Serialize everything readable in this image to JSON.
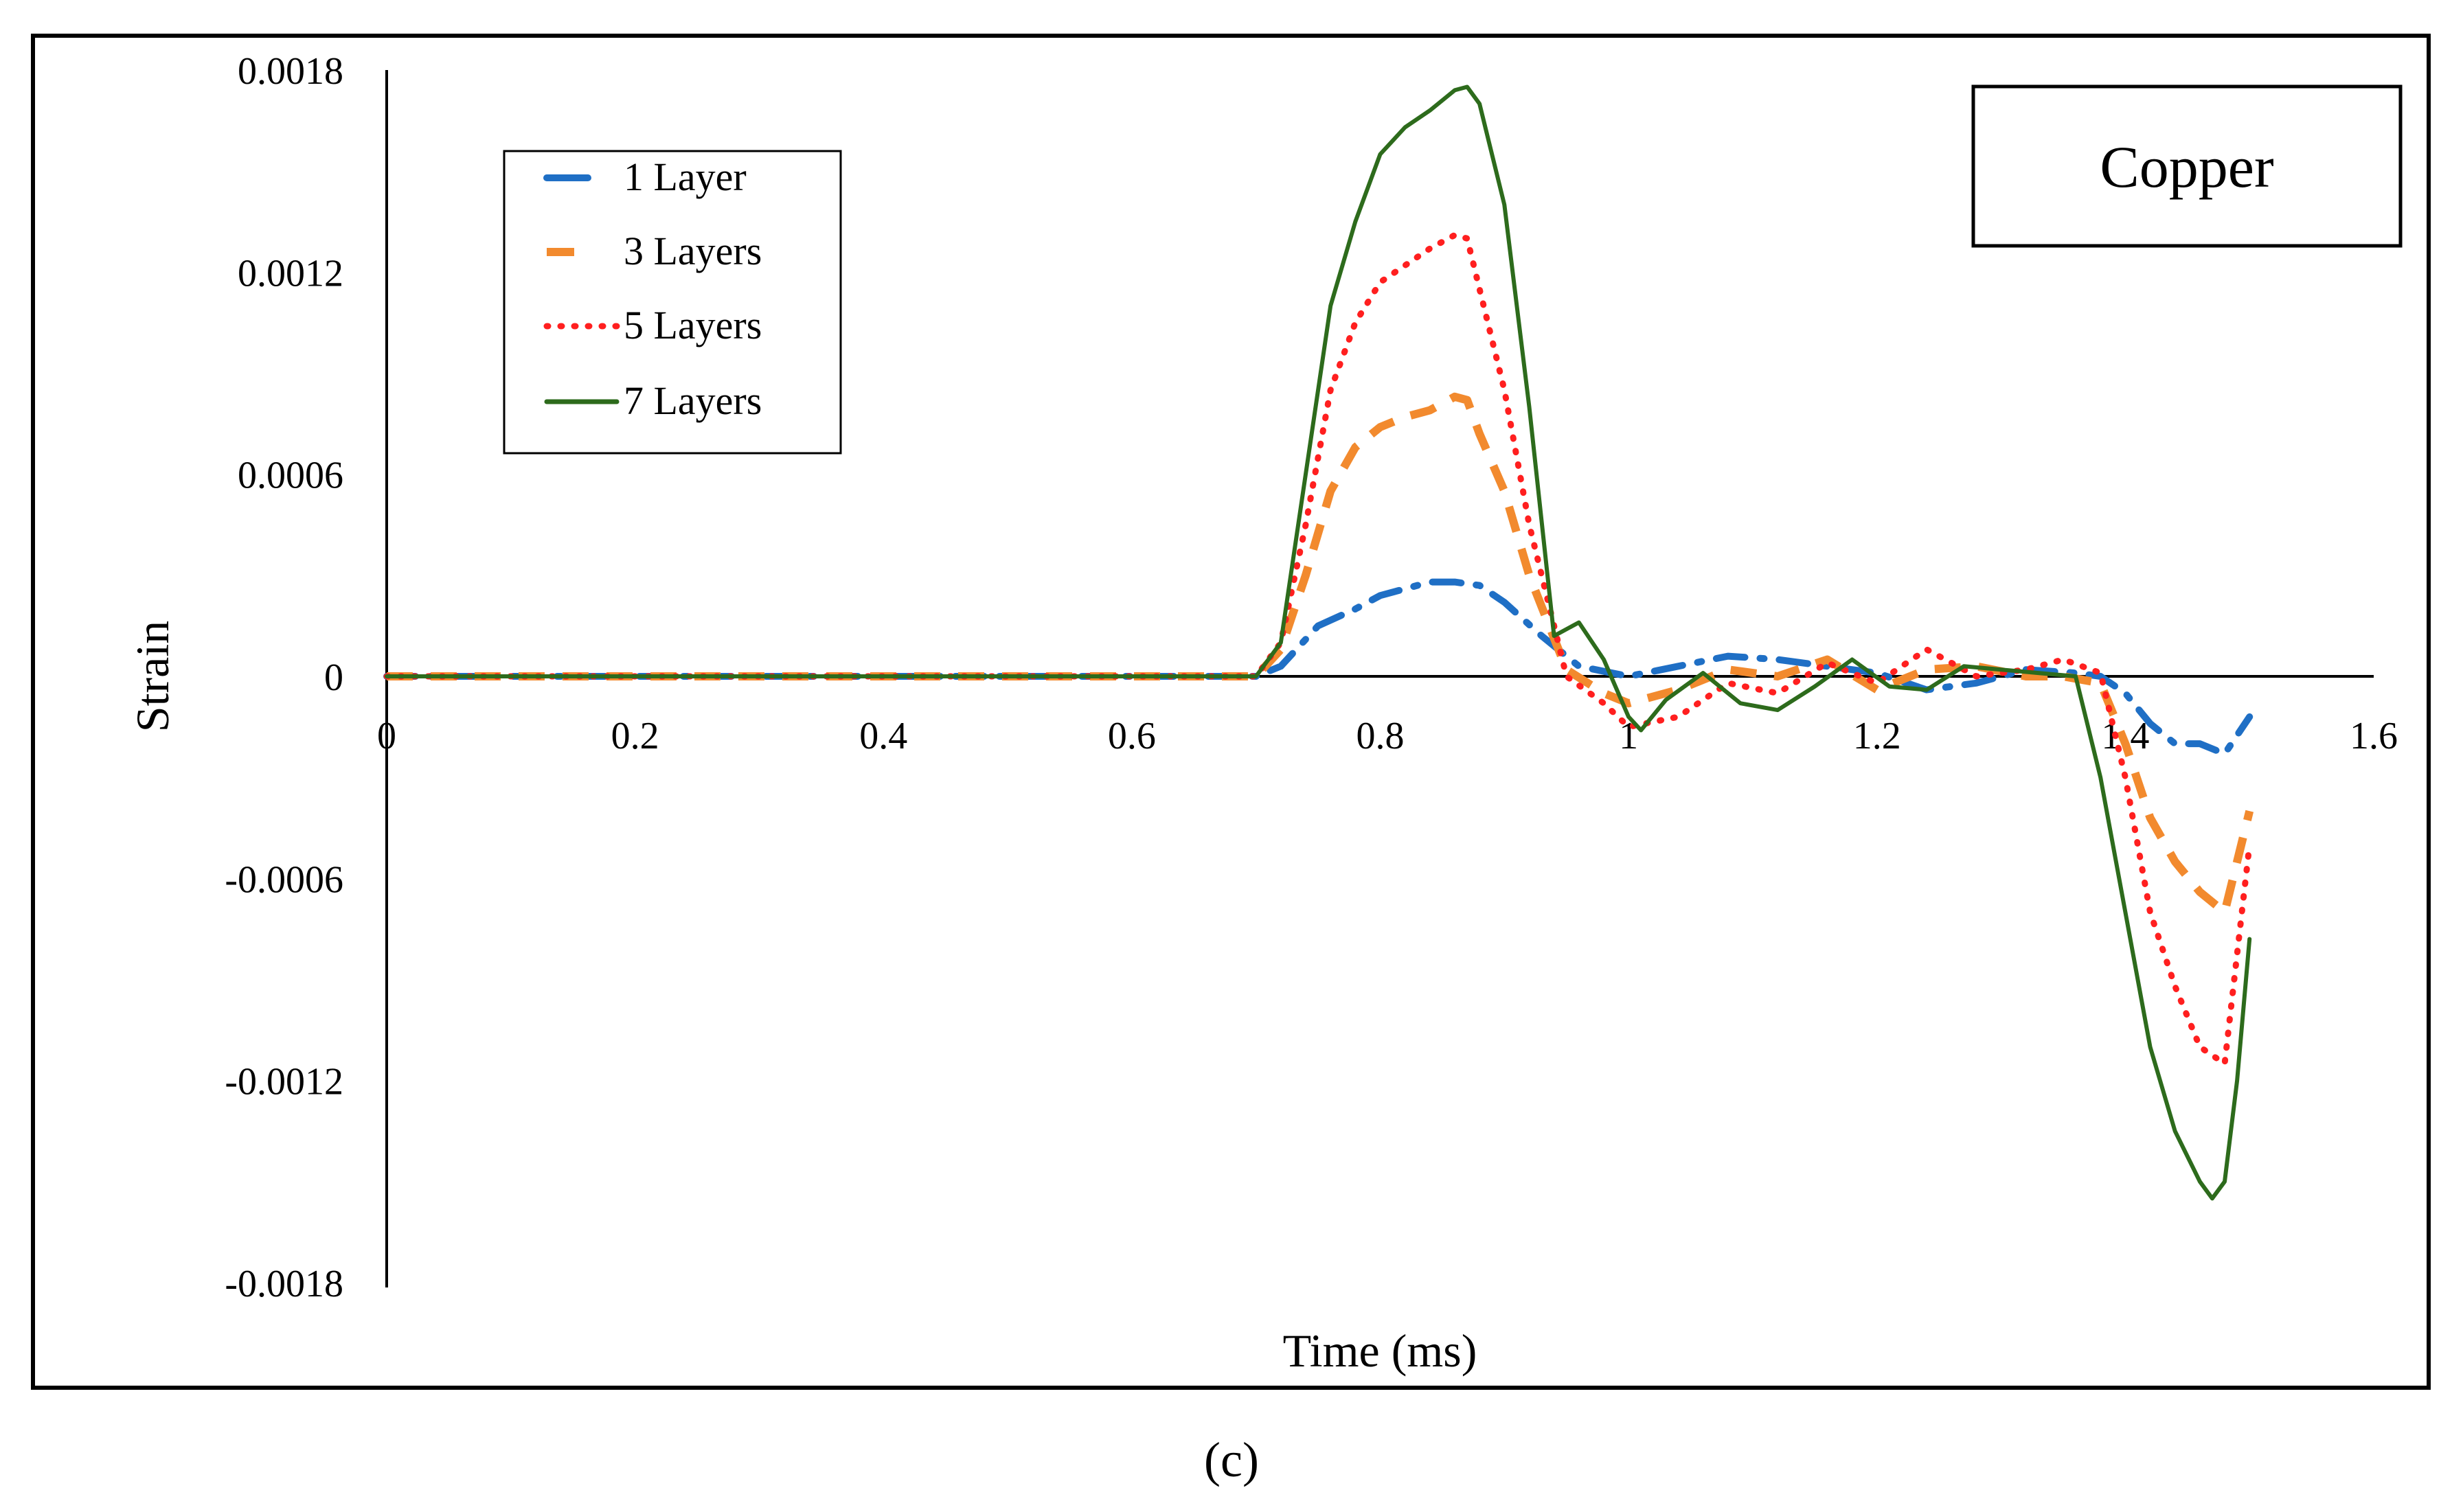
{
  "chart_data": {
    "type": "line",
    "panel_label": "Copper",
    "caption": "(c)",
    "xlabel": "Time (ms)",
    "ylabel": "Strain",
    "xlim": [
      0,
      1.6
    ],
    "ylim": [
      -0.0018,
      0.0018
    ],
    "x_ticks": [
      0,
      0.2,
      0.4,
      0.6,
      0.8,
      1,
      1.2,
      1.4,
      1.6
    ],
    "x_tick_labels": [
      "0",
      "0.2",
      "0.4",
      "0.6",
      "0.8",
      "1",
      "1.2",
      "1.4",
      "1.6"
    ],
    "y_ticks": [
      0.0018,
      0.0012,
      0.0006,
      0,
      -0.0006,
      -0.0012,
      -0.0018
    ],
    "y_tick_labels": [
      "0.0018",
      "0.0012",
      "0.0006",
      "0",
      "-0.0006",
      "-0.0012",
      "-0.0018"
    ],
    "grid": false,
    "legend_position": "top-left",
    "series": [
      {
        "name": "1 Layer",
        "color": "#1f6fc5",
        "style": "dashdot",
        "x": [
          0,
          0.2,
          0.4,
          0.6,
          0.7,
          0.72,
          0.75,
          0.78,
          0.8,
          0.82,
          0.84,
          0.86,
          0.88,
          0.9,
          0.93,
          0.96,
          1.0,
          1.04,
          1.08,
          1.12,
          1.16,
          1.2,
          1.24,
          1.28,
          1.32,
          1.36,
          1.38,
          1.4,
          1.42,
          1.44,
          1.46,
          1.48,
          1.5
        ],
        "y": [
          0,
          0,
          0,
          0,
          0,
          3e-05,
          0.00015,
          0.0002,
          0.00024,
          0.00026,
          0.00028,
          0.00028,
          0.00027,
          0.00022,
          0.00012,
          3e-05,
          0.0,
          3e-05,
          6e-05,
          5e-05,
          3e-05,
          1e-05,
          -4e-05,
          -2e-05,
          2e-05,
          1e-05,
          0.0,
          -5e-05,
          -0.00014,
          -0.0002,
          -0.0002,
          -0.00023,
          -0.00012
        ]
      },
      {
        "name": "3 Layers",
        "color": "#f28a2e",
        "style": "dashed",
        "x": [
          0,
          0.2,
          0.4,
          0.6,
          0.7,
          0.72,
          0.74,
          0.76,
          0.78,
          0.8,
          0.82,
          0.84,
          0.86,
          0.87,
          0.88,
          0.9,
          0.92,
          0.95,
          0.98,
          1.0,
          1.04,
          1.08,
          1.12,
          1.16,
          1.2,
          1.24,
          1.28,
          1.32,
          1.35,
          1.38,
          1.4,
          1.42,
          1.44,
          1.46,
          1.48,
          1.5
        ],
        "y": [
          0,
          0,
          0,
          0,
          0,
          8e-05,
          0.0003,
          0.00055,
          0.00068,
          0.00074,
          0.00077,
          0.00079,
          0.00083,
          0.00082,
          0.00072,
          0.00055,
          0.0003,
          2e-05,
          -5e-05,
          -8e-05,
          -4e-05,
          2e-05,
          0.0,
          5e-05,
          -4e-05,
          2e-05,
          3e-05,
          0.0,
          0.0,
          -2e-05,
          -0.0002,
          -0.00042,
          -0.00055,
          -0.00064,
          -0.0007,
          -0.0004
        ]
      },
      {
        "name": "5 Layers",
        "color": "#ff1f1f",
        "style": "dotted",
        "x": [
          0,
          0.2,
          0.4,
          0.6,
          0.7,
          0.72,
          0.74,
          0.76,
          0.78,
          0.8,
          0.82,
          0.84,
          0.86,
          0.87,
          0.88,
          0.9,
          0.92,
          0.95,
          0.98,
          1.0,
          1.04,
          1.08,
          1.12,
          1.16,
          1.2,
          1.24,
          1.28,
          1.32,
          1.35,
          1.38,
          1.4,
          1.42,
          1.44,
          1.46,
          1.48,
          1.5
        ],
        "y": [
          0,
          0,
          0,
          0,
          0,
          0.0001,
          0.00045,
          0.00085,
          0.00105,
          0.00117,
          0.00122,
          0.00127,
          0.00131,
          0.0013,
          0.00115,
          0.00085,
          0.00045,
          0.0,
          -8e-05,
          -0.00015,
          -0.00012,
          -2e-05,
          -5e-05,
          4e-05,
          -2e-05,
          8e-05,
          0.0,
          2e-05,
          5e-05,
          1e-05,
          -0.0003,
          -0.0007,
          -0.00092,
          -0.0011,
          -0.00115,
          -0.0005
        ]
      },
      {
        "name": "7 Layers",
        "color": "#2d6b1c",
        "style": "solid",
        "x": [
          0,
          0.2,
          0.4,
          0.6,
          0.7,
          0.72,
          0.74,
          0.76,
          0.78,
          0.8,
          0.82,
          0.84,
          0.86,
          0.87,
          0.88,
          0.9,
          0.92,
          0.94,
          0.96,
          0.98,
          1.0,
          1.01,
          1.03,
          1.06,
          1.09,
          1.12,
          1.15,
          1.18,
          1.21,
          1.24,
          1.27,
          1.3,
          1.33,
          1.36,
          1.38,
          1.4,
          1.42,
          1.44,
          1.46,
          1.47,
          1.48,
          1.49,
          1.5
        ],
        "y": [
          0,
          0,
          0,
          0,
          0,
          0.0001,
          0.0006,
          0.0011,
          0.00135,
          0.00155,
          0.00163,
          0.00168,
          0.00174,
          0.00175,
          0.0017,
          0.0014,
          0.0008,
          0.00012,
          0.00016,
          5e-05,
          -0.00012,
          -0.00016,
          -7e-05,
          1e-05,
          -8e-05,
          -0.0001,
          -3e-05,
          5e-05,
          -3e-05,
          -4e-05,
          3e-05,
          2e-05,
          1e-05,
          0.0,
          -0.0003,
          -0.0007,
          -0.0011,
          -0.00135,
          -0.0015,
          -0.00155,
          -0.0015,
          -0.0012,
          -0.00078
        ]
      }
    ]
  }
}
